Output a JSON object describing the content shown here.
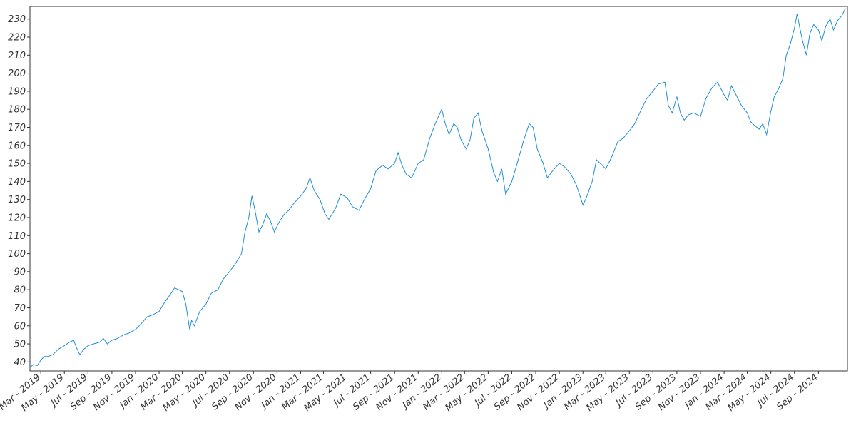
{
  "chart_data": {
    "type": "line",
    "title": "",
    "xlabel": "",
    "ylabel": "",
    "ylim": [
      35,
      237
    ],
    "xlim": [
      "2019-02-01",
      "2024-11-15"
    ],
    "grid": false,
    "legend": "none",
    "y_ticks": [
      40,
      50,
      60,
      70,
      80,
      90,
      100,
      110,
      120,
      130,
      140,
      150,
      160,
      170,
      180,
      190,
      200,
      210,
      220,
      230
    ],
    "x_ticks": [
      {
        "date": "2019-03-01",
        "label": "Mar - 2019"
      },
      {
        "date": "2019-05-01",
        "label": "May - 2019"
      },
      {
        "date": "2019-07-01",
        "label": "Jul - 2019"
      },
      {
        "date": "2019-09-01",
        "label": "Sep - 2019"
      },
      {
        "date": "2019-11-01",
        "label": "Nov - 2019"
      },
      {
        "date": "2020-01-01",
        "label": "Jan - 2020"
      },
      {
        "date": "2020-03-01",
        "label": "Mar - 2020"
      },
      {
        "date": "2020-05-01",
        "label": "May - 2020"
      },
      {
        "date": "2020-07-01",
        "label": "Jul - 2020"
      },
      {
        "date": "2020-09-01",
        "label": "Sep - 2020"
      },
      {
        "date": "2020-11-01",
        "label": "Nov - 2020"
      },
      {
        "date": "2021-01-01",
        "label": "Jan - 2021"
      },
      {
        "date": "2021-03-01",
        "label": "Mar - 2021"
      },
      {
        "date": "2021-05-01",
        "label": "May - 2021"
      },
      {
        "date": "2021-07-01",
        "label": "Jul - 2021"
      },
      {
        "date": "2021-09-01",
        "label": "Sep - 2021"
      },
      {
        "date": "2021-11-01",
        "label": "Nov - 2021"
      },
      {
        "date": "2022-01-01",
        "label": "Jan - 2022"
      },
      {
        "date": "2022-03-01",
        "label": "Mar - 2022"
      },
      {
        "date": "2022-05-01",
        "label": "May - 2022"
      },
      {
        "date": "2022-07-01",
        "label": "Jul - 2022"
      },
      {
        "date": "2022-09-01",
        "label": "Sep - 2022"
      },
      {
        "date": "2022-11-01",
        "label": "Nov - 2022"
      },
      {
        "date": "2023-01-01",
        "label": "Jan - 2023"
      },
      {
        "date": "2023-03-01",
        "label": "Mar - 2023"
      },
      {
        "date": "2023-05-01",
        "label": "May - 2023"
      },
      {
        "date": "2023-07-01",
        "label": "Jul - 2023"
      },
      {
        "date": "2023-09-01",
        "label": "Sep - 2023"
      },
      {
        "date": "2023-11-01",
        "label": "Nov - 2023"
      },
      {
        "date": "2024-01-01",
        "label": "Jan - 2024"
      },
      {
        "date": "2024-03-01",
        "label": "Mar - 2024"
      },
      {
        "date": "2024-05-01",
        "label": "May - 2024"
      },
      {
        "date": "2024-07-01",
        "label": "Jul - 2024"
      },
      {
        "date": "2024-09-01",
        "label": "Sep - 2024"
      }
    ],
    "series": [
      {
        "color": "#1f8fd6",
        "points": [
          [
            "2019-02-01",
            37
          ],
          [
            "2019-02-10",
            38.5
          ],
          [
            "2019-02-20",
            38
          ],
          [
            "2019-03-01",
            41
          ],
          [
            "2019-03-10",
            43
          ],
          [
            "2019-03-20",
            43
          ],
          [
            "2019-04-01",
            44
          ],
          [
            "2019-04-15",
            47
          ],
          [
            "2019-05-01",
            49
          ],
          [
            "2019-05-15",
            51
          ],
          [
            "2019-05-25",
            52
          ],
          [
            "2019-06-01",
            48
          ],
          [
            "2019-06-10",
            44
          ],
          [
            "2019-06-20",
            47
          ],
          [
            "2019-07-01",
            49
          ],
          [
            "2019-07-15",
            50
          ],
          [
            "2019-08-01",
            51
          ],
          [
            "2019-08-10",
            53
          ],
          [
            "2019-08-20",
            50
          ],
          [
            "2019-09-01",
            52
          ],
          [
            "2019-09-15",
            53
          ],
          [
            "2019-10-01",
            55
          ],
          [
            "2019-10-15",
            56
          ],
          [
            "2019-11-01",
            58
          ],
          [
            "2019-11-15",
            61
          ],
          [
            "2019-12-01",
            65
          ],
          [
            "2019-12-15",
            66
          ],
          [
            "2020-01-01",
            68
          ],
          [
            "2020-01-15",
            73
          ],
          [
            "2020-02-01",
            78
          ],
          [
            "2020-02-10",
            81
          ],
          [
            "2020-02-20",
            80
          ],
          [
            "2020-03-01",
            79
          ],
          [
            "2020-03-10",
            72
          ],
          [
            "2020-03-20",
            58
          ],
          [
            "2020-03-25",
            63
          ],
          [
            "2020-04-01",
            60
          ],
          [
            "2020-04-15",
            68
          ],
          [
            "2020-05-01",
            72
          ],
          [
            "2020-05-15",
            78
          ],
          [
            "2020-06-01",
            80
          ],
          [
            "2020-06-15",
            86
          ],
          [
            "2020-07-01",
            90
          ],
          [
            "2020-07-15",
            94
          ],
          [
            "2020-08-01",
            100
          ],
          [
            "2020-08-10",
            112
          ],
          [
            "2020-08-20",
            120
          ],
          [
            "2020-08-28",
            132
          ],
          [
            "2020-09-05",
            124
          ],
          [
            "2020-09-15",
            112
          ],
          [
            "2020-09-25",
            116
          ],
          [
            "2020-10-05",
            122
          ],
          [
            "2020-10-15",
            118
          ],
          [
            "2020-10-25",
            112
          ],
          [
            "2020-11-05",
            117
          ],
          [
            "2020-11-20",
            122
          ],
          [
            "2020-12-01",
            124
          ],
          [
            "2020-12-15",
            128
          ],
          [
            "2021-01-01",
            132
          ],
          [
            "2021-01-15",
            136
          ],
          [
            "2021-01-25",
            142
          ],
          [
            "2021-02-05",
            135
          ],
          [
            "2021-02-20",
            130
          ],
          [
            "2021-03-05",
            122
          ],
          [
            "2021-03-15",
            119
          ],
          [
            "2021-04-01",
            125
          ],
          [
            "2021-04-15",
            133
          ],
          [
            "2021-05-01",
            131
          ],
          [
            "2021-05-15",
            126
          ],
          [
            "2021-06-01",
            124
          ],
          [
            "2021-06-15",
            130
          ],
          [
            "2021-07-01",
            136
          ],
          [
            "2021-07-15",
            146
          ],
          [
            "2021-08-01",
            149
          ],
          [
            "2021-08-15",
            147
          ],
          [
            "2021-09-01",
            150
          ],
          [
            "2021-09-10",
            156
          ],
          [
            "2021-09-20",
            149
          ],
          [
            "2021-10-01",
            144
          ],
          [
            "2021-10-15",
            142
          ],
          [
            "2021-11-01",
            150
          ],
          [
            "2021-11-15",
            152
          ],
          [
            "2021-12-01",
            164
          ],
          [
            "2021-12-15",
            172
          ],
          [
            "2022-01-01",
            180
          ],
          [
            "2022-01-10",
            172
          ],
          [
            "2022-01-20",
            166
          ],
          [
            "2022-02-01",
            172
          ],
          [
            "2022-02-10",
            170
          ],
          [
            "2022-02-20",
            163
          ],
          [
            "2022-03-05",
            158
          ],
          [
            "2022-03-15",
            163
          ],
          [
            "2022-03-25",
            175
          ],
          [
            "2022-04-05",
            178
          ],
          [
            "2022-04-15",
            168
          ],
          [
            "2022-05-01",
            158
          ],
          [
            "2022-05-15",
            145
          ],
          [
            "2022-05-25",
            140
          ],
          [
            "2022-06-05",
            147
          ],
          [
            "2022-06-15",
            133
          ],
          [
            "2022-07-01",
            140
          ],
          [
            "2022-07-15",
            150
          ],
          [
            "2022-08-01",
            163
          ],
          [
            "2022-08-15",
            172
          ],
          [
            "2022-08-25",
            170
          ],
          [
            "2022-09-05",
            158
          ],
          [
            "2022-09-20",
            150
          ],
          [
            "2022-10-01",
            142
          ],
          [
            "2022-10-15",
            146
          ],
          [
            "2022-11-01",
            150
          ],
          [
            "2022-11-15",
            148
          ],
          [
            "2022-12-01",
            144
          ],
          [
            "2022-12-15",
            138
          ],
          [
            "2023-01-01",
            127
          ],
          [
            "2023-01-10",
            131
          ],
          [
            "2023-01-25",
            140
          ],
          [
            "2023-02-05",
            152
          ],
          [
            "2023-02-15",
            150
          ],
          [
            "2023-03-01",
            147
          ],
          [
            "2023-03-15",
            153
          ],
          [
            "2023-04-01",
            162
          ],
          [
            "2023-04-15",
            164
          ],
          [
            "2023-05-01",
            168
          ],
          [
            "2023-05-15",
            172
          ],
          [
            "2023-06-01",
            180
          ],
          [
            "2023-06-15",
            186
          ],
          [
            "2023-07-01",
            190
          ],
          [
            "2023-07-15",
            194
          ],
          [
            "2023-08-01",
            195
          ],
          [
            "2023-08-10",
            182
          ],
          [
            "2023-08-20",
            178
          ],
          [
            "2023-09-01",
            187
          ],
          [
            "2023-09-10",
            178
          ],
          [
            "2023-09-20",
            174
          ],
          [
            "2023-10-01",
            177
          ],
          [
            "2023-10-15",
            178
          ],
          [
            "2023-11-01",
            176
          ],
          [
            "2023-11-15",
            186
          ],
          [
            "2023-12-01",
            192
          ],
          [
            "2023-12-15",
            195
          ],
          [
            "2024-01-01",
            188
          ],
          [
            "2024-01-10",
            185
          ],
          [
            "2024-01-20",
            193
          ],
          [
            "2024-02-01",
            188
          ],
          [
            "2024-02-15",
            182
          ],
          [
            "2024-03-01",
            178
          ],
          [
            "2024-03-10",
            173
          ],
          [
            "2024-03-20",
            171
          ],
          [
            "2024-04-01",
            169
          ],
          [
            "2024-04-10",
            172
          ],
          [
            "2024-04-20",
            166
          ],
          [
            "2024-05-01",
            179
          ],
          [
            "2024-05-10",
            187
          ],
          [
            "2024-05-20",
            191
          ],
          [
            "2024-06-01",
            197
          ],
          [
            "2024-06-10",
            210
          ],
          [
            "2024-06-20",
            216
          ],
          [
            "2024-07-01",
            225
          ],
          [
            "2024-07-08",
            233
          ],
          [
            "2024-07-15",
            225
          ],
          [
            "2024-07-22",
            218
          ],
          [
            "2024-08-01",
            210
          ],
          [
            "2024-08-10",
            222
          ],
          [
            "2024-08-20",
            227
          ],
          [
            "2024-09-01",
            224
          ],
          [
            "2024-09-10",
            218
          ],
          [
            "2024-09-20",
            226
          ],
          [
            "2024-10-01",
            230
          ],
          [
            "2024-10-10",
            224
          ],
          [
            "2024-10-20",
            229
          ],
          [
            "2024-11-01",
            232
          ],
          [
            "2024-11-10",
            236
          ]
        ]
      }
    ]
  }
}
